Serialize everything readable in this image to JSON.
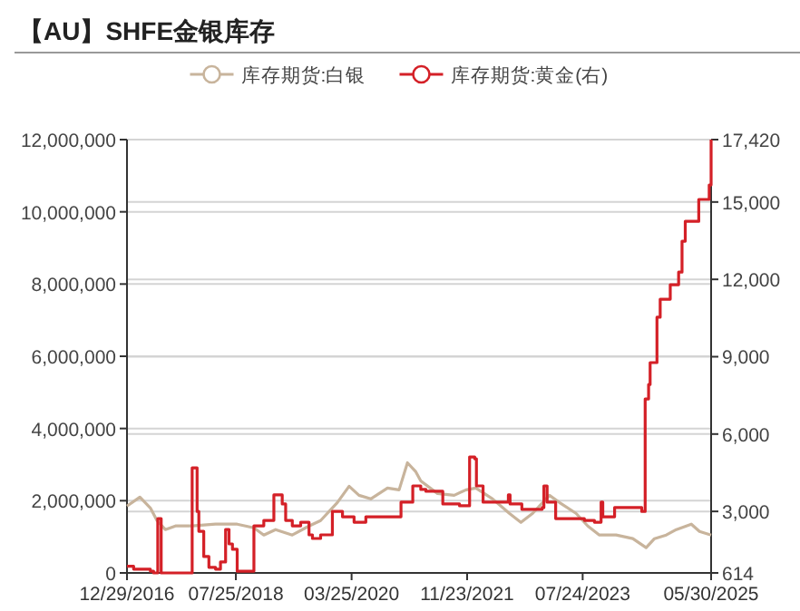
{
  "chart_data": {
    "type": "line",
    "title": "【AU】SHFE金银库存",
    "series": [
      {
        "name": "库存期货:白银",
        "color": "#c8b49c",
        "axis": "y",
        "x": [
          "2016-12-29",
          "2017-03-07",
          "2017-05-01",
          "2017-06-05",
          "2017-07-19",
          "2017-09-10",
          "2017-12-07",
          "2018-04-09",
          "2018-08-01",
          "2018-10-28",
          "2018-12-19",
          "2019-02-19",
          "2019-05-18",
          "2019-08-14",
          "2019-10-14",
          "2020-01-10",
          "2020-03-12",
          "2020-05-03",
          "2020-07-04",
          "2020-09-30",
          "2020-11-30",
          "2021-01-13",
          "2021-02-26",
          "2021-03-24",
          "2021-06-20",
          "2021-09-16",
          "2021-11-17",
          "2022-01-08",
          "2022-04-06",
          "2022-07-03",
          "2022-09-02",
          "2022-11-03",
          "2023-01-30",
          "2023-03-24",
          "2023-06-19",
          "2023-08-20",
          "2023-10-20",
          "2024-01-16",
          "2024-04-13",
          "2024-06-22",
          "2024-08-05",
          "2024-10-06",
          "2024-11-28",
          "2025-02-15",
          "2025-03-30",
          "2025-05-30"
        ],
        "values": [
          1850000,
          2100000,
          1800000,
          1450000,
          1200000,
          1300000,
          1300000,
          1350000,
          1350000,
          1250000,
          1050000,
          1200000,
          1050000,
          1300000,
          1450000,
          1950000,
          2400000,
          2150000,
          2050000,
          2350000,
          2300000,
          3050000,
          2800000,
          2550000,
          2200000,
          2150000,
          2300000,
          2350000,
          2050000,
          1650000,
          1400000,
          1650000,
          2150000,
          1950000,
          1650000,
          1300000,
          1050000,
          1050000,
          950000,
          700000,
          950000,
          1050000,
          1200000,
          1350000,
          1150000,
          1050000
        ]
      },
      {
        "name": "库存期货:黄金(右)",
        "color": "#d42027",
        "type": "step",
        "axis": "y2",
        "x": [
          "2016-12-29",
          "2017-02-02",
          "2017-05-01",
          "2017-05-18",
          "2017-06-09",
          "2017-06-27",
          "2017-12-07",
          "2018-01-02",
          "2018-01-11",
          "2018-02-06",
          "2018-03-05",
          "2018-04-09",
          "2018-05-05",
          "2018-06-01",
          "2018-06-19",
          "2018-07-07",
          "2018-08-01",
          "2018-10-28",
          "2018-12-19",
          "2019-02-10",
          "2019-03-26",
          "2019-04-13",
          "2019-05-18",
          "2019-07-01",
          "2019-08-14",
          "2019-09-01",
          "2019-10-14",
          "2019-12-15",
          "2020-02-06",
          "2020-04-07",
          "2020-06-08",
          "2020-07-31",
          "2020-12-10",
          "2021-02-10",
          "2021-03-24",
          "2021-04-20",
          "2021-07-18",
          "2021-10-14",
          "2021-12-06",
          "2022-01-02",
          "2022-01-11",
          "2022-02-15",
          "2022-06-28",
          "2022-07-07",
          "2022-09-07",
          "2022-12-23",
          "2023-01-01",
          "2023-01-18",
          "2023-03-04",
          "2023-08-02",
          "2023-09-24",
          "2023-10-29",
          "2023-11-07",
          "2024-01-08",
          "2024-05-30",
          "2024-06-17",
          "2024-07-05",
          "2024-07-13",
          "2024-08-18",
          "2024-09-04",
          "2024-10-27",
          "2024-12-10",
          "2024-12-28",
          "2025-01-14",
          "2025-03-26",
          "2025-05-20",
          "2025-05-30"
        ],
        "values": [
          870,
          760,
          680,
          614,
          2720,
          614,
          4690,
          3000,
          2230,
          1250,
          830,
          760,
          1040,
          2300,
          1740,
          1530,
          680,
          2440,
          2650,
          3640,
          3290,
          2650,
          2440,
          2580,
          2090,
          1950,
          2090,
          3000,
          2790,
          2580,
          2790,
          2790,
          3360,
          3990,
          3850,
          3780,
          3290,
          3220,
          5110,
          5040,
          3990,
          3360,
          3640,
          3290,
          3080,
          3150,
          3990,
          3360,
          2720,
          2650,
          2580,
          3360,
          2790,
          3150,
          3000,
          7360,
          7920,
          8770,
          10530,
          11230,
          11790,
          12280,
          13480,
          14250,
          15100,
          15660,
          17420
        ]
      }
    ],
    "xlim": [
      "2016-12-29",
      "2025-05-30"
    ],
    "xticks": [
      {
        "value": "2016-12-29",
        "label": "12/29/2016"
      },
      {
        "value": "2018-07-25",
        "label": "07/25/2018"
      },
      {
        "value": "2020-03-25",
        "label": "03/25/2020"
      },
      {
        "value": "2021-11-23",
        "label": "11/23/2021"
      },
      {
        "value": "2023-07-24",
        "label": "07/24/2023"
      },
      {
        "value": "2025-05-30",
        "label": "05/30/2025"
      }
    ],
    "ylim": [
      0,
      12000000
    ],
    "yticks": [
      {
        "value": 0,
        "label": "0"
      },
      {
        "value": 2000000,
        "label": "2,000,000"
      },
      {
        "value": 4000000,
        "label": "4,000,000"
      },
      {
        "value": 6000000,
        "label": "6,000,000"
      },
      {
        "value": 8000000,
        "label": "8,000,000"
      },
      {
        "value": 10000000,
        "label": "10,000,000"
      },
      {
        "value": 12000000,
        "label": "12,000,000"
      }
    ],
    "y2lim": [
      614,
      17420
    ],
    "y2ticks": [
      {
        "value": 614,
        "label": "614"
      },
      {
        "value": 3000,
        "label": "3,000"
      },
      {
        "value": 6000,
        "label": "6,000"
      },
      {
        "value": 9000,
        "label": "9,000"
      },
      {
        "value": 12000,
        "label": "12,000"
      },
      {
        "value": 15000,
        "label": "15,000"
      },
      {
        "value": 17420,
        "label": "17,420"
      }
    ],
    "grid": true,
    "legend": "top"
  }
}
